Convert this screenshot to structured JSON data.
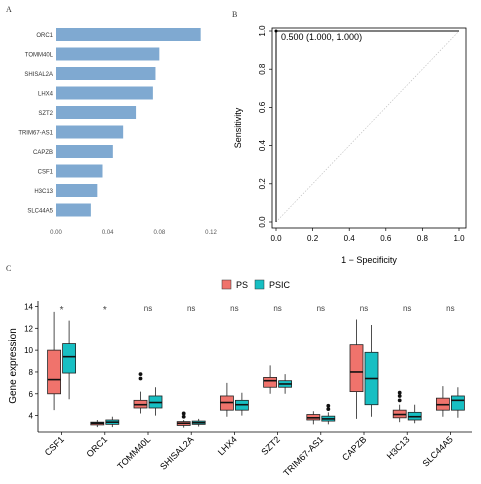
{
  "panels": {
    "a": "A",
    "b": "B",
    "c": "C"
  },
  "chart_data": [
    {
      "type": "bar",
      "orientation": "horizontal",
      "categories": [
        "ORC1",
        "TOMM40L",
        "SHISAL2A",
        "LHX4",
        "SZT2",
        "TRIM67-AS1",
        "CAPZB",
        "CSF1",
        "H3C13",
        "SLC44A5"
      ],
      "values": [
        0.112,
        0.08,
        0.077,
        0.075,
        0.062,
        0.052,
        0.044,
        0.036,
        0.032,
        0.027
      ],
      "xlim": [
        0,
        0.12
      ],
      "xticks": [
        "0.00",
        "0.04",
        "0.08",
        "0.12"
      ],
      "bar_color": "#7fa9d1"
    },
    {
      "type": "line",
      "title": "",
      "xlabel": "1 − Specificity",
      "ylabel": "Sensitivity",
      "xlim": [
        0,
        1
      ],
      "ylim": [
        0,
        1
      ],
      "xticks": [
        "0.0",
        "0.2",
        "0.4",
        "0.6",
        "0.8",
        "1.0"
      ],
      "yticks": [
        "0.0",
        "0.2",
        "0.4",
        "0.6",
        "0.8",
        "1.0"
      ],
      "roc_points": [
        [
          0,
          0
        ],
        [
          0,
          1
        ],
        [
          1,
          1
        ]
      ],
      "annotation": "0.500 (1.000, 1.000)",
      "reference_line": [
        [
          0,
          0
        ],
        [
          1,
          1
        ]
      ]
    },
    {
      "type": "box",
      "ylabel": "Gene expression",
      "ylim": [
        2.5,
        14.5
      ],
      "yticks": [
        "4",
        "6",
        "8",
        "10",
        "12",
        "14"
      ],
      "legend": {
        "entries": [
          "PS",
          "PSIC"
        ],
        "position": "top"
      },
      "colors": {
        "PS": "#f0736c",
        "PSIC": "#17bfc3"
      },
      "categories": [
        "CSF1",
        "ORC1",
        "TOMM40L",
        "SHISAL2A",
        "LHX4",
        "SZT2",
        "TRIM67-AS1",
        "CAPZB",
        "H3C13",
        "SLC44A5"
      ],
      "significance": [
        "*",
        "*",
        "ns",
        "ns",
        "ns",
        "ns",
        "ns",
        "ns",
        "ns",
        "ns"
      ],
      "series": [
        {
          "name": "PS",
          "boxes": [
            {
              "min": 4.5,
              "q1": 6.0,
              "median": 7.3,
              "q3": 10.0,
              "max": 13.5,
              "outliers": []
            },
            {
              "min": 2.95,
              "q1": 3.15,
              "median": 3.3,
              "q3": 3.4,
              "max": 3.6,
              "outliers": []
            },
            {
              "min": 4.2,
              "q1": 4.7,
              "median": 5.0,
              "q3": 5.4,
              "max": 6.2,
              "outliers": [
                7.4,
                7.8
              ]
            },
            {
              "min": 2.9,
              "q1": 3.1,
              "median": 3.3,
              "q3": 3.45,
              "max": 3.6,
              "outliers": [
                3.9,
                4.2
              ]
            },
            {
              "min": 3.9,
              "q1": 4.5,
              "median": 5.2,
              "q3": 5.8,
              "max": 7.0,
              "outliers": []
            },
            {
              "min": 6.0,
              "q1": 6.6,
              "median": 7.2,
              "q3": 7.5,
              "max": 8.6,
              "outliers": []
            },
            {
              "min": 3.2,
              "q1": 3.6,
              "median": 3.8,
              "q3": 4.1,
              "max": 4.4,
              "outliers": []
            },
            {
              "min": 3.7,
              "q1": 6.2,
              "median": 8.0,
              "q3": 10.5,
              "max": 12.8,
              "outliers": []
            },
            {
              "min": 3.4,
              "q1": 3.8,
              "median": 4.1,
              "q3": 4.5,
              "max": 5.0,
              "outliers": [
                5.4,
                5.8,
                6.1
              ]
            },
            {
              "min": 3.9,
              "q1": 4.5,
              "median": 5.0,
              "q3": 5.6,
              "max": 6.7,
              "outliers": []
            }
          ]
        },
        {
          "name": "PSIC",
          "boxes": [
            {
              "min": 5.5,
              "q1": 7.9,
              "median": 9.4,
              "q3": 10.6,
              "max": 12.7,
              "outliers": []
            },
            {
              "min": 2.95,
              "q1": 3.2,
              "median": 3.4,
              "q3": 3.6,
              "max": 3.9,
              "outliers": []
            },
            {
              "min": 4.0,
              "q1": 4.7,
              "median": 5.2,
              "q3": 5.8,
              "max": 6.6,
              "outliers": []
            },
            {
              "min": 3.0,
              "q1": 3.2,
              "median": 3.35,
              "q3": 3.5,
              "max": 3.7,
              "outliers": []
            },
            {
              "min": 4.0,
              "q1": 4.5,
              "median": 5.0,
              "q3": 5.4,
              "max": 6.1,
              "outliers": []
            },
            {
              "min": 6.0,
              "q1": 6.6,
              "median": 6.9,
              "q3": 7.2,
              "max": 7.8,
              "outliers": []
            },
            {
              "min": 3.2,
              "q1": 3.5,
              "median": 3.7,
              "q3": 3.95,
              "max": 4.3,
              "outliers": [
                4.6,
                4.9
              ]
            },
            {
              "min": 3.9,
              "q1": 5.0,
              "median": 7.4,
              "q3": 9.8,
              "max": 12.3,
              "outliers": []
            },
            {
              "min": 3.3,
              "q1": 3.6,
              "median": 3.9,
              "q3": 4.3,
              "max": 5.0,
              "outliers": []
            },
            {
              "min": 3.8,
              "q1": 4.5,
              "median": 5.4,
              "q3": 5.8,
              "max": 6.6,
              "outliers": []
            }
          ]
        }
      ]
    }
  ]
}
